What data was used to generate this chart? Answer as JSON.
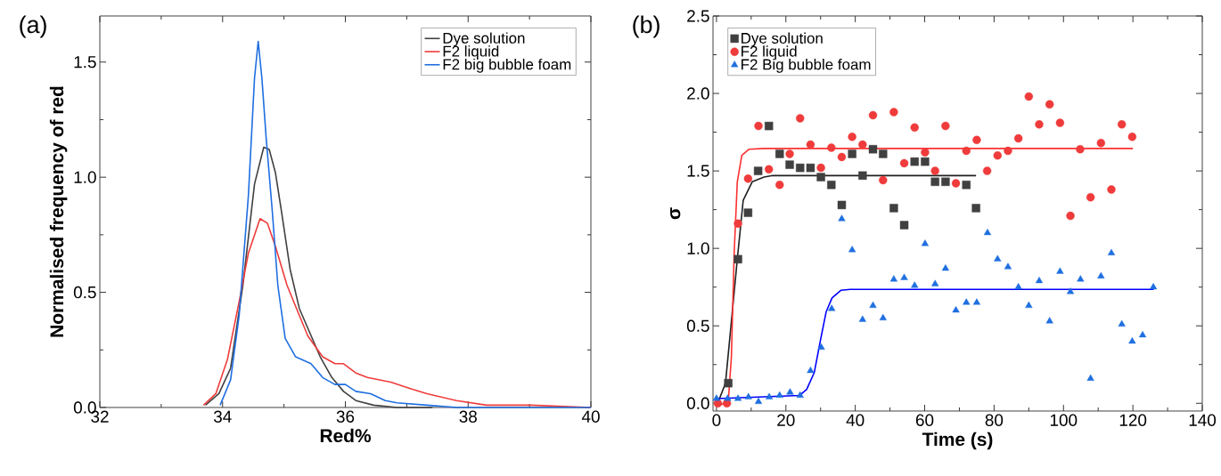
{
  "chart_data": [
    {
      "type": "line",
      "title": "(a)",
      "xlabel": "Red%",
      "ylabel": "Normalised frequency of red",
      "xlim": [
        32,
        40
      ],
      "ylim": [
        0,
        1.7
      ],
      "xticks": [
        32,
        34,
        36,
        38,
        40
      ],
      "yticks": [
        {
          "value": 0,
          "label": "0.0"
        },
        {
          "value": 0.5,
          "label": "0.5"
        },
        {
          "value": 1.0,
          "label": "1.0"
        },
        {
          "value": 1.5,
          "label": "1.5"
        }
      ],
      "legend": "top right",
      "series": [
        {
          "name": "Dye solution",
          "color": "#404040",
          "x": [
            33.72,
            33.94,
            34.13,
            34.33,
            34.52,
            34.67,
            34.76,
            34.86,
            34.96,
            35.1,
            35.25,
            35.39,
            35.59,
            35.78,
            35.97,
            36.17,
            36.46,
            36.84,
            37.42
          ],
          "values": [
            0.01,
            0.06,
            0.17,
            0.53,
            0.97,
            1.13,
            1.12,
            1.02,
            0.85,
            0.6,
            0.43,
            null,
            0.22,
            0.13,
            0.07,
            0.03,
            0.01,
            0,
            0
          ]
        },
        {
          "name": "F2 liquid",
          "color": "#ef3b3b",
          "x": [
            33.69,
            33.89,
            34.08,
            34.27,
            34.42,
            34.61,
            34.73,
            34.86,
            35.05,
            35.25,
            35.39,
            35.63,
            35.83,
            35.97,
            36.17,
            36.36,
            36.74,
            37.08,
            37.33,
            37.81,
            38.3,
            39.02,
            40
          ],
          "values": [
            0.01,
            0.06,
            0.21,
            0.46,
            0.67,
            0.82,
            0.8,
            0.7,
            0.53,
            0.4,
            0.31,
            0.22,
            0.19,
            0.19,
            0.15,
            0.13,
            0.11,
            0.08,
            0.06,
            0.03,
            0.01,
            0.01,
            0
          ]
        },
        {
          "name": "F2 big bubble foam",
          "color": "#1f6fe0",
          "x": [
            33.96,
            34.13,
            34.27,
            34.42,
            34.52,
            34.58,
            34.64,
            34.71,
            34.81,
            34.9,
            35.02,
            35.19,
            35.44,
            35.63,
            35.83,
            36.0,
            36.17,
            36.41,
            36.65,
            36.84,
            37.33,
            37.81,
            40
          ],
          "values": [
            0.01,
            0.12,
            0.4,
            0.92,
            1.43,
            1.59,
            1.43,
            1.17,
            0.85,
            0.53,
            0.3,
            0.22,
            0.19,
            0.13,
            0.1,
            0.1,
            0.07,
            0.06,
            0.03,
            0.02,
            0.01,
            0,
            0
          ]
        }
      ]
    },
    {
      "type": "scatter",
      "title": "(b)",
      "xlabel": "Time (s)",
      "ylabel": "σ",
      "xlim": [
        -1,
        140
      ],
      "ylim": [
        -0.05,
        2.5
      ],
      "xticks": [
        0,
        20,
        40,
        60,
        80,
        100,
        120,
        140
      ],
      "yticks": [
        {
          "value": 0,
          "label": "0.0"
        },
        {
          "value": 0.5,
          "label": "0.5"
        },
        {
          "value": 1.0,
          "label": "1.0"
        },
        {
          "value": 1.5,
          "label": "1.5"
        },
        {
          "value": 2.0,
          "label": "2.0"
        },
        {
          "value": 2.5,
          "label": "2.5"
        }
      ],
      "legend": "top left",
      "series": [
        {
          "name": "Dye solution",
          "color": "#404040",
          "marker": "square",
          "x": [
            3.4,
            6.2,
            9.1,
            12.0,
            15.1,
            18.2,
            21.1,
            24.1,
            27.1,
            30.1,
            33.1,
            36.1,
            39.1,
            42.1,
            45.1,
            48.0,
            51.1,
            54.1,
            57.1,
            60.1,
            63.0,
            66.0,
            72.0,
            74.8
          ],
          "values": [
            0.13,
            0.93,
            1.23,
            1.5,
            1.79,
            1.61,
            1.54,
            1.52,
            1.52,
            1.46,
            1.41,
            1.28,
            1.61,
            1.47,
            1.64,
            1.61,
            1.26,
            1.15,
            1.56,
            1.56,
            1.43,
            1.43,
            1.41,
            1.26
          ]
        },
        {
          "name": "F2 liquid",
          "color": "#ef3b3b",
          "marker": "circle",
          "x": [
            0.4,
            3.0,
            6.2,
            9.1,
            12.1,
            15.1,
            18.2,
            21.1,
            24.1,
            27.1,
            30.1,
            33.1,
            36.1,
            39.1,
            42.1,
            45.1,
            48.0,
            51.1,
            54.1,
            57.1,
            60.1,
            63.0,
            66.0,
            69.0,
            72.0,
            75.0,
            78.0,
            81.0,
            84.0,
            87.0,
            90.0,
            93.0,
            96.0,
            99.0,
            102.0,
            104.8,
            107.8,
            110.8,
            113.8,
            116.8,
            119.8
          ],
          "values": [
            0.0,
            0.0,
            1.16,
            1.45,
            1.79,
            1.51,
            1.41,
            1.61,
            1.84,
            1.67,
            1.52,
            1.65,
            1.59,
            1.72,
            1.67,
            1.86,
            1.44,
            1.88,
            1.55,
            1.78,
            1.62,
            1.5,
            1.79,
            1.42,
            1.63,
            1.7,
            1.5,
            1.6,
            1.63,
            1.71,
            1.98,
            1.8,
            1.93,
            1.81,
            1.21,
            1.64,
            1.33,
            1.68,
            1.38,
            1.8,
            1.72
          ]
        },
        {
          "name": "F2 Big bubble foam",
          "color": "#1f6fe0",
          "marker": "triangle",
          "x": [
            0,
            3.2,
            6.2,
            9.2,
            12.1,
            15.2,
            18.2,
            21.2,
            24.1,
            27.1,
            30.2,
            33.2,
            36.1,
            39.1,
            42.1,
            45.1,
            48.0,
            51.1,
            54.1,
            57.1,
            60.1,
            63.0,
            66.0,
            69.0,
            72.0,
            75.0,
            78.1,
            81.0,
            84.0,
            87.0,
            90.0,
            93.0,
            96.0,
            99.0,
            102.0,
            104.9,
            107.8,
            110.8,
            113.8,
            116.8,
            119.8,
            122.8,
            125.9
          ],
          "values": [
            0.03,
            0.03,
            0.03,
            0.04,
            0.01,
            0.04,
            0.05,
            0.07,
            0.05,
            0.21,
            0.36,
            0.61,
            1.19,
            0.99,
            0.54,
            0.63,
            0.55,
            0.8,
            0.81,
            0.76,
            1.03,
            0.77,
            0.87,
            0.6,
            0.65,
            0.65,
            1.1,
            0.93,
            0.88,
            0.75,
            0.63,
            0.79,
            0.53,
            0.85,
            0.72,
            0.8,
            0.16,
            0.82,
            0.97,
            0.51,
            0.4,
            0.44,
            0.75
          ]
        },
        {
          "type": "line",
          "color": "#202020",
          "x": [
            0,
            2.6,
            4.7,
            6.0,
            7.7,
            10.3,
            13.7,
            16.2,
            74.8
          ],
          "values": [
            -0.02,
            0.13,
            null,
            0.93,
            1.31,
            1.43,
            1.46,
            1.47,
            1.47
          ]
        },
        {
          "type": "line",
          "color": "#ff3030",
          "x": [
            0,
            3.4,
            4.3,
            5.1,
            6.0,
            7.3,
            9.4,
            13.7,
            120
          ],
          "values": [
            -0.02,
            0.01,
            0.3,
            0.97,
            1.43,
            1.6,
            1.64,
            1.645,
            1.645
          ]
        },
        {
          "type": "line",
          "color": "#0000ff",
          "x": [
            0,
            23.9,
            26,
            28.2,
            29.9,
            31.6,
            33.3,
            35.9,
            38.5,
            126
          ],
          "values": [
            0.03,
            0.05,
            0.09,
            0.2,
            0.4,
            0.59,
            0.68,
            0.73,
            0.735,
            0.735
          ]
        }
      ]
    }
  ]
}
